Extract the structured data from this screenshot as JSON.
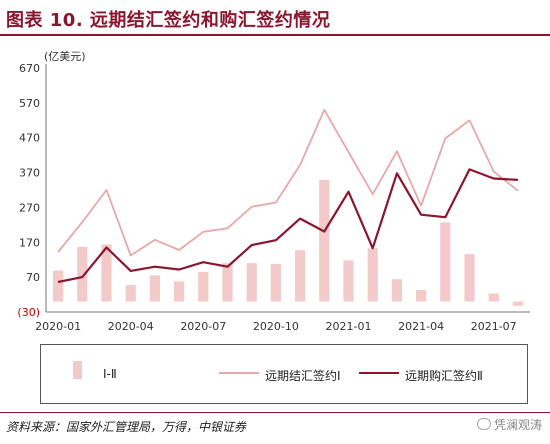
{
  "header": {
    "title": "图表 10. 远期结汇签约和购汇签约情况"
  },
  "footer": {
    "source": "资料来源：国家外汇管理局，万得，中银证券",
    "watermark": "凭澜观涛"
  },
  "chart_data": {
    "type": "bar+line",
    "unit_label": "(亿美元)",
    "yticks": [
      "670",
      "570",
      "470",
      "370",
      "270",
      "170",
      "70",
      "(30)"
    ],
    "ylim": [
      -30,
      670
    ],
    "xtick_labels": [
      "2020-01",
      "2020-04",
      "2020-07",
      "2020-10",
      "2021-01",
      "2021-04",
      "2021-07"
    ],
    "x": [
      "2020-01",
      "2020-02",
      "2020-03",
      "2020-04",
      "2020-05",
      "2020-06",
      "2020-07",
      "2020-08",
      "2020-09",
      "2020-10",
      "2020-11",
      "2020-12",
      "2021-01",
      "2021-02",
      "2021-03",
      "2021-04",
      "2021-05",
      "2021-06",
      "2021-07",
      "2021-08"
    ],
    "series": [
      {
        "name": "Ⅰ-Ⅱ",
        "type": "bar",
        "color": "#f3c9c9",
        "values": [
          89,
          157,
          164,
          47,
          75,
          58,
          85,
          110,
          110,
          108,
          147,
          349,
          118,
          153,
          64,
          33,
          227,
          136,
          23,
          -12
        ]
      },
      {
        "name": "远期结汇签约Ⅰ",
        "type": "line",
        "color": "#e8a8a8",
        "values": [
          142,
          228,
          320,
          132,
          177,
          148,
          200,
          210,
          272,
          284,
          392,
          550,
          429,
          308,
          431,
          275,
          468,
          520,
          373,
          318
        ]
      },
      {
        "name": "远期购汇签约Ⅱ",
        "type": "line",
        "color": "#8a1630",
        "values": [
          56,
          70,
          155,
          88,
          100,
          92,
          113,
          100,
          162,
          176,
          238,
          201,
          315,
          153,
          368,
          249,
          242,
          379,
          353,
          349
        ]
      }
    ]
  }
}
